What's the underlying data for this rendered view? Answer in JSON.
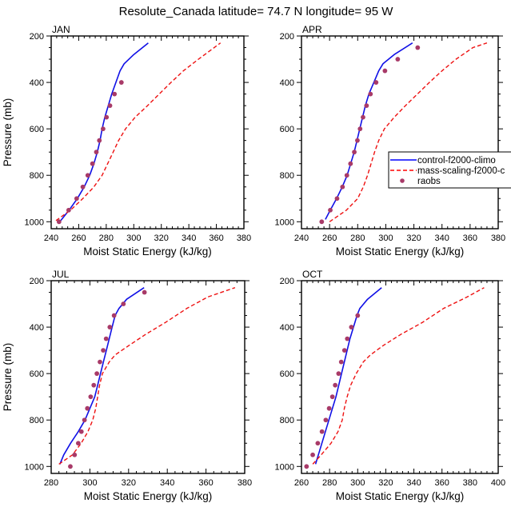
{
  "chart_data": {
    "type": "line",
    "title": "Resolute_Canada  latitude= 74.7 N longitude= 95 W",
    "legend": {
      "placement": "right-middle of APR panel",
      "entries": [
        {
          "name": "control-f2000-climo",
          "style": "solid",
          "color": "#0000ff"
        },
        {
          "name": "mass-scaling-f2000-c",
          "style": "dashed",
          "color": "#ff0000"
        },
        {
          "name": "raobs",
          "style": "marker",
          "color": "#b03060"
        }
      ]
    },
    "colors": {
      "control": "#1010e6",
      "mass_scaling": "#ee1111",
      "raobs": "#a83a68",
      "frame": "#000000"
    },
    "panels": [
      {
        "label": "JAN",
        "xlabel": "Moist Static Energy (kJ/kg)",
        "ylabel": "Pressure (mb)",
        "xlim": [
          240,
          380
        ],
        "xticks": [
          240,
          260,
          280,
          300,
          320,
          340,
          360,
          380
        ],
        "ylim": [
          200,
          1030
        ],
        "yticks": [
          200,
          400,
          600,
          800,
          1000
        ],
        "y_inverted": true,
        "series": [
          {
            "name": "control-f2000-climo",
            "pressure": [
              995,
              950,
              900,
              850,
              800,
              750,
              700,
              650,
              600,
              550,
              500,
              450,
              400,
              350,
              320,
              280,
              230
            ],
            "values": [
              247,
              253,
              259,
              264,
              268,
              271,
              273.5,
              275.5,
              277,
              279,
              281.5,
              284,
              287,
              290,
              293,
              300,
              310.5
            ]
          },
          {
            "name": "mass-scaling-f2000-c",
            "pressure": [
              995,
              950,
              900,
              850,
              800,
              750,
              700,
              650,
              600,
              550,
              500,
              450,
              400,
              350,
              300,
              230
            ],
            "values": [
              243.5,
              254,
              263,
              271,
              277,
              281,
              285,
              289,
              294,
              301,
              310,
              318.5,
              327,
              336,
              347,
              363
            ]
          },
          {
            "name": "raobs",
            "pressure": [
              1000,
              950,
              900,
              850,
              800,
              750,
              700,
              650,
              600,
              550,
              500,
              450,
              400
            ],
            "values": [
              245.7,
              252.7,
              258.5,
              263,
              266.6,
              270,
              272.8,
              275,
              277.7,
              280.2,
              282.7,
              286,
              291
            ]
          }
        ]
      },
      {
        "label": "APR",
        "xlabel": "Moist Static Energy (kJ/kg)",
        "ylabel": "",
        "xlim": [
          240,
          380
        ],
        "xticks": [
          240,
          260,
          280,
          300,
          320,
          340,
          360,
          380
        ],
        "ylim": [
          200,
          1030
        ],
        "yticks": [
          200,
          400,
          600,
          800,
          1000
        ],
        "y_inverted": true,
        "series": [
          {
            "name": "control-f2000-climo",
            "pressure": [
              990,
              950,
              900,
              850,
              800,
              750,
              700,
              650,
              600,
              550,
              500,
              450,
              400,
              350,
              320,
              280,
              230
            ],
            "values": [
              257,
              260.5,
              265,
              269,
              272.5,
              275,
              277.5,
              279.5,
              281.5,
              283.5,
              285.5,
              288,
              291.5,
              295,
              298,
              306,
              319
            ]
          },
          {
            "name": "mass-scaling-f2000-c",
            "pressure": [
              1000,
              950,
              900,
              850,
              800,
              750,
              700,
              650,
              600,
              550,
              500,
              450,
              400,
              350,
              300,
              250,
              230
            ],
            "values": [
              260,
              272,
              280,
              284,
              287,
              289.5,
              292,
              295,
              299,
              306,
              314,
              322.5,
              331,
              340,
              350,
              362,
              372
            ]
          },
          {
            "name": "raobs",
            "pressure": [
              1000,
              950,
              900,
              850,
              800,
              750,
              700,
              650,
              600,
              550,
              500,
              450,
              400,
              350,
              300,
              250
            ],
            "values": [
              254.4,
              260.5,
              265.3,
              269.2,
              272.3,
              274.9,
              277.6,
              279.8,
              281.7,
              283.8,
              286.3,
              289.1,
              293.1,
              299.4,
              308.5,
              322.7
            ]
          }
        ]
      },
      {
        "label": "JUL",
        "xlabel": "Moist Static Energy (kJ/kg)",
        "ylabel": "Pressure (mb)",
        "xlim": [
          280,
          380
        ],
        "xticks": [
          280,
          300,
          320,
          340,
          360,
          380
        ],
        "ylim": [
          200,
          1030
        ],
        "yticks": [
          200,
          400,
          600,
          800,
          1000
        ],
        "y_inverted": true,
        "series": [
          {
            "name": "control-f2000-climo",
            "pressure": [
              990,
              950,
              900,
              850,
              800,
              750,
              700,
              650,
              600,
              550,
              500,
              450,
              400,
              350,
              320,
              280,
              230
            ],
            "values": [
              284.5,
              286.5,
              290,
              294,
              297.5,
              300,
              302.5,
              304,
              305.5,
              307,
              308.5,
              310,
              311.5,
              313,
              315,
              319,
              328
            ]
          },
          {
            "name": "mass-scaling-f2000-c",
            "pressure": [
              990,
              950,
              900,
              850,
              800,
              750,
              700,
              650,
              600,
              550,
              520,
              480,
              430,
              380,
              320,
              270,
              230
            ],
            "values": [
              284,
              291,
              295.5,
              299,
              301.5,
              303,
              304,
              305,
              306.5,
              310,
              313,
              320,
              329,
              339,
              350,
              361,
              375
            ]
          },
          {
            "name": "raobs",
            "pressure": [
              1000,
              950,
              900,
              850,
              800,
              750,
              700,
              650,
              600,
              550,
              500,
              450,
              400,
              350,
              300,
              250
            ],
            "values": [
              289.9,
              292.1,
              294,
              295.6,
              297.2,
              298.7,
              300.4,
              302,
              303.6,
              305.2,
              306.9,
              308.4,
              310.3,
              312.5,
              317.3,
              328.2
            ]
          }
        ]
      },
      {
        "label": "OCT",
        "xlabel": "Moist Static Energy (kJ/kg)",
        "ylabel": "",
        "xlim": [
          260,
          400
        ],
        "xticks": [
          260,
          280,
          300,
          320,
          340,
          360,
          380,
          400
        ],
        "ylim": [
          200,
          1030
        ],
        "yticks": [
          200,
          400,
          600,
          800,
          1000
        ],
        "y_inverted": true,
        "series": [
          {
            "name": "control-f2000-climo",
            "pressure": [
              990,
              950,
              900,
              850,
              800,
              750,
              700,
              650,
              600,
              550,
              500,
              450,
              400,
              350,
              320,
              280,
              230
            ],
            "values": [
              270,
              272,
              274.5,
              277,
              279.5,
              282,
              284.5,
              286.5,
              288.5,
              290.5,
              292.5,
              294.5,
              297,
              299.5,
              301.5,
              307,
              317
            ]
          },
          {
            "name": "mass-scaling-f2000-c",
            "pressure": [
              990,
              950,
              900,
              850,
              800,
              750,
              700,
              650,
              600,
              550,
              520,
              480,
              430,
              380,
              320,
              270,
              230
            ],
            "values": [
              268,
              274,
              281,
              286,
              289,
              290.5,
              292.5,
              295,
              299,
              304,
              309,
              318,
              331,
              346,
              361,
              378,
              390
            ]
          },
          {
            "name": "raobs",
            "pressure": [
              1000,
              950,
              900,
              850,
              800,
              750,
              700,
              650,
              600,
              550,
              500,
              450,
              400,
              350
            ],
            "values": [
              263.6,
              268,
              271.6,
              274.6,
              277.3,
              279.7,
              282,
              284,
              286.4,
              288.3,
              290.6,
              292.6,
              295.5,
              300
            ]
          }
        ]
      }
    ]
  }
}
